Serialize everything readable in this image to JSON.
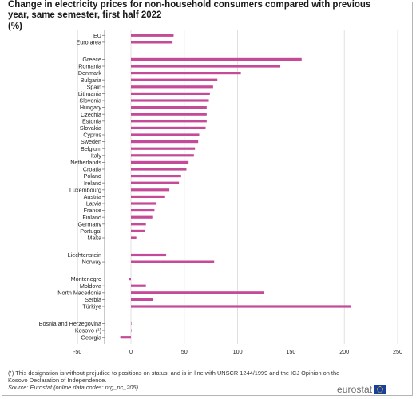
{
  "header": {
    "title": "Change in electricity prices for non-household consumers compared with previous year, same semester, first half 2022",
    "unit": "(%)"
  },
  "footer": {
    "note": "(¹) This designation is without prejudice to positions on status, and is in line with UNSCR 1244/1999 and the ICJ Opinion on the Kosovo Declaration of Independence.",
    "source": "Source: Eurostat (online data codes: nrg_pc_205)",
    "logo": "eurostat",
    "logo_icon": "eu-flag-icon"
  },
  "colors": {
    "bar": "#c54a98",
    "grid": "#d9d9d9",
    "axis": "#7a7a7a",
    "text": "#222222"
  },
  "chart_data": {
    "type": "bar",
    "orientation": "horizontal",
    "title": "Change in electricity prices for non-household consumers compared with previous year, same semester, first half 2022",
    "ylabel": "(%)",
    "xlim": [
      -50,
      250
    ],
    "xticks": [
      -50,
      0,
      50,
      100,
      150,
      200,
      250
    ],
    "grid": "vertical",
    "groups": [
      {
        "categories": [
          "EU",
          "Euro area"
        ],
        "values": [
          40,
          39
        ]
      },
      {
        "categories": [
          "Greece",
          "Romania",
          "Denmark",
          "Bulgaria",
          "Spain",
          "Lithuania",
          "Slovenia",
          "Hungary",
          "Czechia",
          "Estonia",
          "Slovakia",
          "Cyprus",
          "Sweden",
          "Belgium",
          "Italy",
          "Netherlands",
          "Croatia",
          "Poland",
          "Ireland",
          "Luxembourg",
          "Austria",
          "Latvia",
          "France",
          "Finland",
          "Germany",
          "Portugal",
          "Malta"
        ],
        "values": [
          160,
          140,
          103,
          81,
          77,
          74,
          73,
          71,
          71,
          71,
          70,
          64,
          63,
          60,
          59,
          54,
          52,
          47,
          45,
          36,
          32,
          24,
          22,
          20,
          14,
          13,
          5
        ]
      },
      {
        "categories": [
          "Liechtenstein",
          "Norway"
        ],
        "values": [
          33,
          78
        ]
      },
      {
        "categories": [
          "Montenegro",
          "Moldova",
          "North Macedonia",
          "Serbia",
          "Türkiye"
        ],
        "values": [
          -2,
          14,
          125,
          21,
          206
        ]
      },
      {
        "categories": [
          "Bosnia and Herzegovina",
          "Kosovo (¹)",
          "Georgia"
        ],
        "values": [
          0,
          0,
          -10
        ]
      }
    ]
  }
}
